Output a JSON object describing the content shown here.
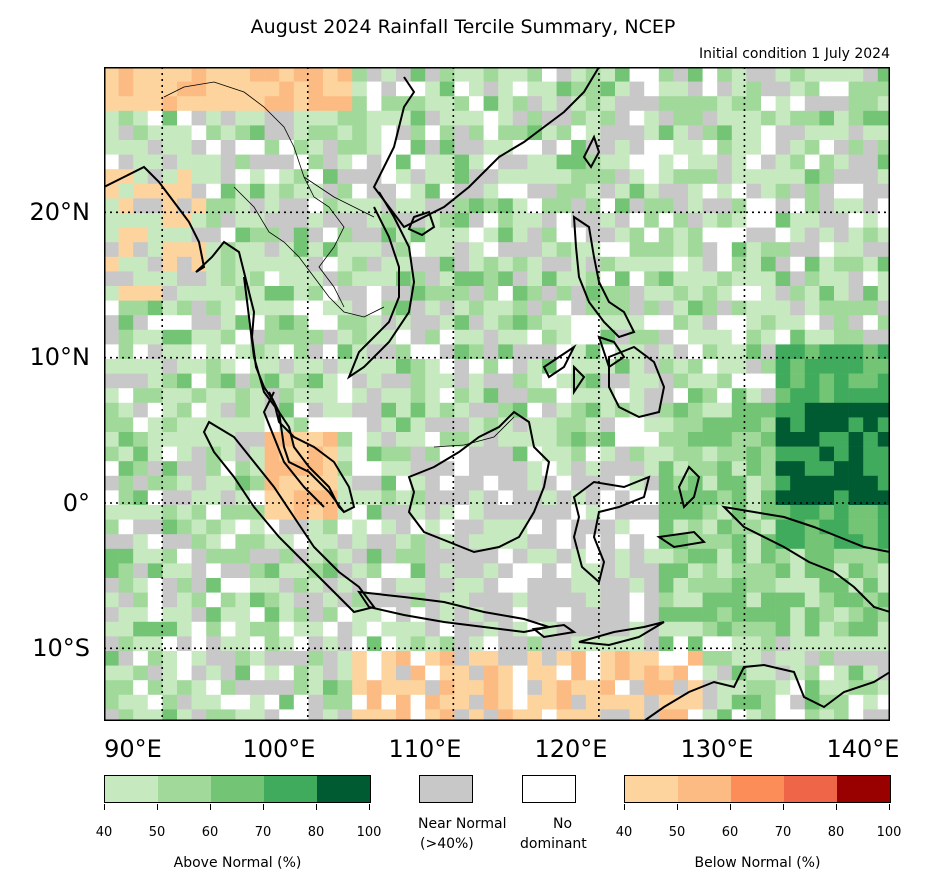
{
  "title": "August 2024 Rainfall Tercile Summary, NCEP",
  "subtitle": "Initial condition 1 July 2024",
  "map": {
    "lon_range": [
      86,
      140
    ],
    "lat_range": [
      -15,
      30
    ],
    "lat_labels": [
      "20°N",
      "10°N",
      "0°",
      "10°S"
    ],
    "lon_labels": [
      "90°E",
      "100°E",
      "110°E",
      "120°E",
      "130°E",
      "140°E"
    ],
    "category_colors": {
      "above_40": "#c7e9c0",
      "above_50": "#a1d99b",
      "above_60": "#74c476",
      "above_70": "#41ab5d",
      "above_80": "#005a32",
      "near_normal": "#c8c8c8",
      "no_dominant": "#ffffff",
      "below_40": "#fdd49e",
      "below_50": "#fdbb84",
      "below_60": "#fc8d59",
      "below_70": "#ef6548",
      "below_80": "#990000"
    }
  },
  "legend": {
    "above": {
      "label": "Above Normal (%)",
      "ticks": [
        "40",
        "50",
        "60",
        "70",
        "80",
        "100"
      ],
      "colors": [
        "#c7e9c0",
        "#a1d99b",
        "#74c476",
        "#41ab5d",
        "#005a32"
      ]
    },
    "near_normal": {
      "label_line1": "Near Normal",
      "label_line2": "(>40%)",
      "color": "#c8c8c8"
    },
    "no_dominant": {
      "label_line1": "No",
      "label_line2": "dominant",
      "color": "#ffffff"
    },
    "below": {
      "label": "Below Normal (%)",
      "ticks": [
        "40",
        "50",
        "60",
        "70",
        "80",
        "100"
      ],
      "colors": [
        "#fdd49e",
        "#fdbb84",
        "#fc8d59",
        "#ef6548",
        "#990000"
      ]
    }
  }
}
